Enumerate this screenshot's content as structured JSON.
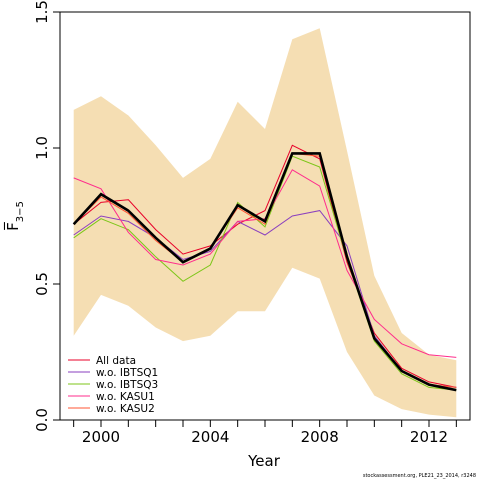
{
  "chart_data": {
    "type": "line",
    "title": "",
    "xlabel": "Year",
    "ylabel": "F̅",
    "ylabel_subscript": "3−5",
    "xlim": [
      1998.5,
      2013.5
    ],
    "ylim": [
      0,
      1.5
    ],
    "x_ticks": [
      {
        "value": 2000,
        "label": "2000"
      },
      {
        "value": 2004,
        "label": "2004"
      },
      {
        "value": 2008,
        "label": "2008"
      },
      {
        "value": 2012,
        "label": "2012"
      }
    ],
    "y_ticks": [
      {
        "value": 0.0,
        "label": "0.0"
      },
      {
        "value": 0.5,
        "label": "0.5"
      },
      {
        "value": 1.0,
        "label": "1.0"
      },
      {
        "value": 1.5,
        "label": "1.5"
      }
    ],
    "x": [
      1999,
      2000,
      2001,
      2002,
      2003,
      2004,
      2005,
      2006,
      2007,
      2008,
      2009,
      2010,
      2011,
      2012,
      2013
    ],
    "confidence_band": {
      "color": "#f5deb3",
      "upper": [
        1.14,
        1.19,
        1.12,
        1.01,
        0.89,
        0.96,
        1.17,
        1.07,
        1.4,
        1.44,
        0.99,
        0.53,
        0.32,
        0.24,
        0.22
      ],
      "lower": [
        0.31,
        0.46,
        0.42,
        0.34,
        0.29,
        0.31,
        0.4,
        0.4,
        0.56,
        0.52,
        0.25,
        0.09,
        0.04,
        0.02,
        0.01
      ]
    },
    "estimate": {
      "color": "#000000",
      "values": [
        0.72,
        0.83,
        0.77,
        0.67,
        0.58,
        0.63,
        0.79,
        0.73,
        0.98,
        0.98,
        0.6,
        0.3,
        0.18,
        0.13,
        0.11
      ]
    },
    "series": [
      {
        "name": "All data",
        "color": "#e8002a",
        "values": [
          0.72,
          0.8,
          0.81,
          0.7,
          0.61,
          0.64,
          0.72,
          0.77,
          1.01,
          0.96,
          0.58,
          0.32,
          0.19,
          0.14,
          0.12
        ]
      },
      {
        "name": "w.o. IBTSQ1",
        "color": "#8a3fbf",
        "values": [
          0.68,
          0.75,
          0.73,
          0.67,
          0.59,
          0.62,
          0.73,
          0.68,
          0.75,
          0.77,
          0.64,
          0.31,
          0.18,
          0.13,
          0.12
        ]
      },
      {
        "name": "w.o. IBTSQ3",
        "color": "#7cc618",
        "values": [
          0.67,
          0.74,
          0.7,
          0.6,
          0.51,
          0.57,
          0.8,
          0.71,
          0.97,
          0.93,
          0.59,
          0.29,
          0.17,
          0.12,
          0.11
        ]
      },
      {
        "name": "w.o. KASU1",
        "color": "#ff2d8c",
        "values": [
          0.89,
          0.85,
          0.69,
          0.59,
          0.57,
          0.61,
          0.73,
          0.74,
          0.92,
          0.86,
          0.55,
          0.37,
          0.28,
          0.24,
          0.23
        ]
      },
      {
        "name": "w.o. KASU2",
        "color": "#ff5533",
        "values": [
          0.72,
          0.82,
          0.76,
          0.66,
          0.58,
          0.63,
          0.78,
          0.72,
          0.98,
          0.97,
          0.59,
          0.3,
          0.18,
          0.13,
          0.12
        ]
      }
    ],
    "legend_position": "bottom-left",
    "grid": false
  },
  "footer": {
    "credit": "stockassessment.org, PLE21_23_2014, r3248"
  }
}
